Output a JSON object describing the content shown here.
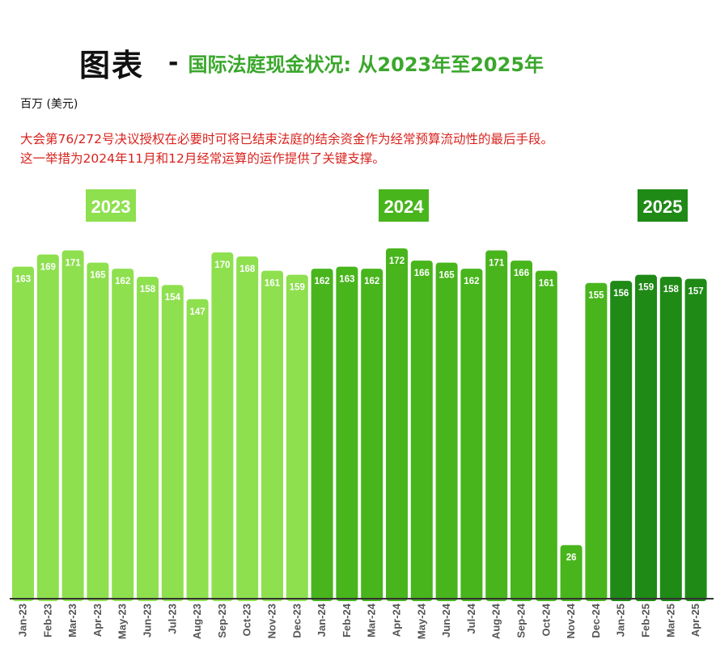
{
  "title": "图表",
  "title_dash": "-",
  "subtitle": "国际法庭现金状况: 从2023年至2025年",
  "unit_label": "百万 (美元)",
  "note_lines": [
    "大会第76/272号决议授权在必要时可将已结束法庭的结余资金作为经常预算流动性的最后手段。",
    "这一举措为2024年11月和12月经常运算的运作提供了关键支撑。"
  ],
  "colors": {
    "y2023": "#8ee04f",
    "y2024": "#48b51c",
    "y2025": "#1f8a16",
    "subtitle": "#3aa72c",
    "note": "#d8231e"
  },
  "chart_data": {
    "type": "bar",
    "title": "",
    "xlabel": "",
    "ylabel": "百万 (美元)",
    "ylim": [
      0,
      172
    ],
    "grid": false,
    "year_labels": [
      "2023",
      "2024",
      "2025"
    ],
    "categories": [
      "Jan-23",
      "Feb-23",
      "Mar-23",
      "Apr-23",
      "May-23",
      "Jun-23",
      "Jul-23",
      "Aug-23",
      "Sep-23",
      "Oct-23",
      "Nov-23",
      "Dec-23",
      "Jan-24",
      "Feb-24",
      "Mar-24",
      "Apr-24",
      "May-24",
      "Jun-24",
      "Jul-24",
      "Aug-24",
      "Sep-24",
      "Oct-24",
      "Nov-24",
      "Dec-24",
      "Jan-25",
      "Feb-25",
      "Mar-25",
      "Apr-25"
    ],
    "values": [
      163,
      169,
      171,
      165,
      162,
      158,
      154,
      147,
      170,
      168,
      161,
      159,
      162,
      163,
      162,
      172,
      166,
      165,
      162,
      171,
      166,
      161,
      26,
      155,
      156,
      159,
      158,
      157
    ]
  }
}
